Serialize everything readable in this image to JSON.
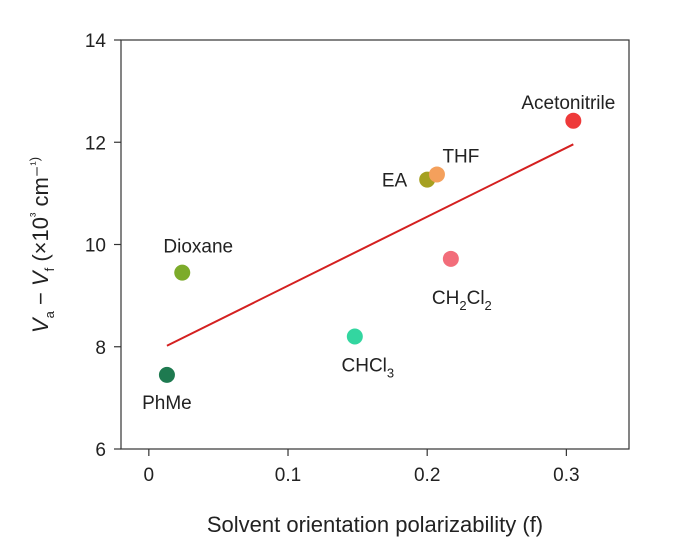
{
  "chart_data": {
    "type": "scatter",
    "xlabel": "Solvent orientation polarizability (f)",
    "ylabel": "Va − Vf (×10³ cm⁻¹)",
    "xlim": [
      -0.02,
      0.345
    ],
    "ylim": [
      6,
      14
    ],
    "x_ticks": [
      0,
      0.1,
      0.2,
      0.3
    ],
    "x_tick_labels": [
      "0",
      "0.1",
      "0.2",
      "0.3"
    ],
    "y_ticks": [
      6,
      8,
      10,
      12,
      14
    ],
    "y_tick_labels": [
      "6",
      "8",
      "10",
      "12",
      "14"
    ],
    "grid": false,
    "points": [
      {
        "label": "PhMe",
        "label_main": "PhMe",
        "x": 0.013,
        "y": 7.45,
        "color": "#1e7a50"
      },
      {
        "label": "Dioxane",
        "label_main": "Dioxane",
        "x": 0.024,
        "y": 9.45,
        "color": "#7cab2a"
      },
      {
        "label": "CHCl3",
        "label_main": "CHCl",
        "label_sub": "3",
        "x": 0.148,
        "y": 8.2,
        "color": "#33d6a0"
      },
      {
        "label": "EA",
        "label_main": "EA",
        "x": 0.2,
        "y": 11.27,
        "color": "#a6a020"
      },
      {
        "label": "THF",
        "label_main": "THF",
        "x": 0.207,
        "y": 11.37,
        "color": "#f4a05c"
      },
      {
        "label": "CH2Cl2",
        "label_main": "CH",
        "label_sub": "2",
        "label_main2": "Cl",
        "label_sub2": "2",
        "x": 0.217,
        "y": 9.72,
        "color": "#f26d7a"
      },
      {
        "label": "Acetonitrile",
        "label_main": "Acetonitrile",
        "x": 0.305,
        "y": 12.42,
        "color": "#ee3a3a"
      }
    ],
    "fit_line": {
      "x": [
        0.013,
        0.305
      ],
      "y": [
        8.02,
        11.96
      ],
      "color": "#d42020"
    }
  }
}
